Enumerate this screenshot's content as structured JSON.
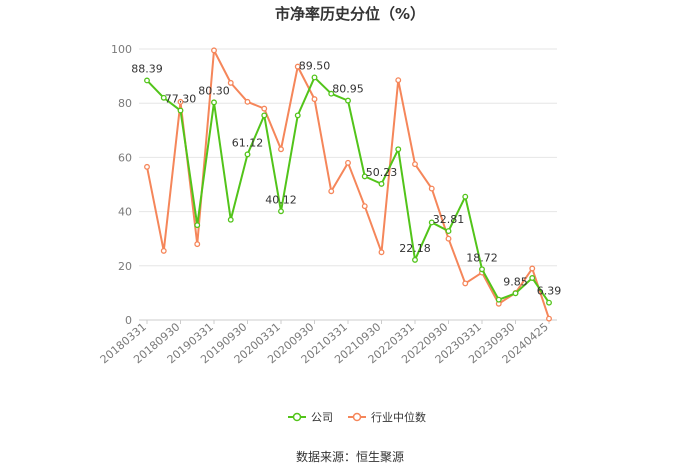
{
  "chart_data": {
    "type": "line",
    "title": "市净率历史分位（%）",
    "x": [
      "20180331",
      "20180630",
      "20180930",
      "20181231",
      "20190331",
      "20190630",
      "20190930",
      "20191231",
      "20200331",
      "20200630",
      "20200930",
      "20201231",
      "20210331",
      "20210630",
      "20210930",
      "20211231",
      "20220331",
      "20220630",
      "20220930",
      "20221231",
      "20230331",
      "20230630",
      "20230930",
      "20231231",
      "20240425"
    ],
    "x_tick_labels": [
      "20180331",
      "20180930",
      "20190331",
      "20190930",
      "20200331",
      "20200930",
      "20210331",
      "20210930",
      "20220331",
      "20220930",
      "20230331",
      "20230930",
      "20240425"
    ],
    "ylim": [
      0,
      100
    ],
    "y_ticks": [
      0,
      20,
      40,
      60,
      80,
      100
    ],
    "grid": true,
    "legend_position": "bottom",
    "series": [
      {
        "name": "公司",
        "color": "#52c41a",
        "values": [
          88.39,
          82.0,
          77.3,
          35.0,
          80.3,
          37.0,
          61.12,
          75.5,
          40.12,
          75.5,
          89.5,
          83.5,
          80.95,
          53.0,
          50.23,
          63.0,
          22.18,
          36.0,
          32.81,
          45.5,
          18.72,
          7.5,
          9.85,
          15.5,
          6.39
        ],
        "labels": {
          "0": "88.39",
          "2": "77.30",
          "4": "80.30",
          "6": "61.12",
          "8": "40.12",
          "10": "89.50",
          "12": "80.95",
          "14": "50.23",
          "16": "22.18",
          "18": "32.81",
          "20": "18.72",
          "22": "9.85",
          "24": "6.39"
        }
      },
      {
        "name": "行业中位数",
        "color": "#f5865a",
        "values": [
          56.5,
          25.5,
          80.5,
          28.0,
          99.5,
          87.5,
          80.5,
          78.0,
          63.0,
          93.5,
          81.5,
          47.5,
          58.0,
          42.0,
          25.0,
          88.5,
          57.5,
          48.5,
          30.0,
          13.5,
          17.5,
          6.0,
          10.0,
          19.0,
          0.5
        ]
      }
    ]
  },
  "source_text": "数据来源：恒生聚源"
}
